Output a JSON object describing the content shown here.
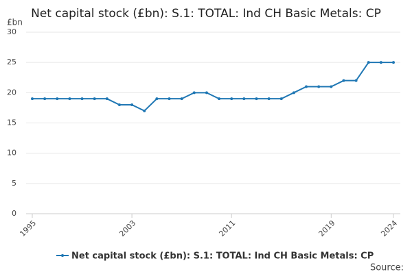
{
  "chart_data": {
    "type": "line",
    "title": "Net capital stock (£bn): S.1: TOTAL: Ind CH Basic Metals: CP",
    "y_unit_label": "£bn",
    "source": "Source:",
    "x": [
      1995,
      1996,
      1997,
      1998,
      1999,
      2000,
      2001,
      2002,
      2003,
      2004,
      2005,
      2006,
      2007,
      2008,
      2009,
      2010,
      2011,
      2012,
      2013,
      2014,
      2015,
      2016,
      2017,
      2018,
      2019,
      2020,
      2021,
      2022,
      2023,
      2024
    ],
    "series": [
      {
        "name": "Net capital stock (£bn): S.1: TOTAL: Ind CH Basic Metals: CP",
        "color": "#1f77b4",
        "values": [
          19,
          19,
          19,
          19,
          19,
          19,
          19,
          18,
          18,
          17,
          19,
          19,
          19,
          20,
          20,
          19,
          19,
          19,
          19,
          19,
          19,
          20,
          21,
          21,
          21,
          22,
          22,
          25,
          25,
          25
        ]
      }
    ],
    "xlim": [
      1995,
      2024
    ],
    "xticks": [
      1995,
      2003,
      2011,
      2019,
      2024
    ],
    "ylim": [
      0,
      30
    ],
    "yticks": [
      0,
      5,
      10,
      15,
      20,
      25,
      30
    ],
    "grid": true,
    "legend": "bottom"
  }
}
